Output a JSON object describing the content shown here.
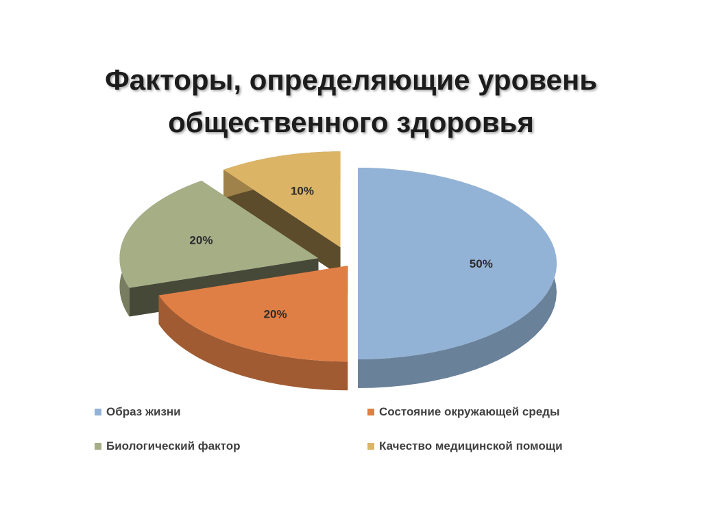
{
  "slide": {
    "title_line1": "Факторы, определяющие уровень",
    "title_line2": "общественного здоровья"
  },
  "chart_data": {
    "type": "pie",
    "style": "3d-exploded",
    "categories": [
      "Образ жизни",
      "Состояние окружающей среды",
      "Биологический фактор",
      "Качество медицинской помощи"
    ],
    "values": [
      50,
      20,
      20,
      10
    ],
    "data_labels": [
      "50%",
      "20%",
      "20%",
      "10%"
    ],
    "colors": [
      "#93b3d6",
      "#e07f45",
      "#a6ae86",
      "#dcb466"
    ],
    "legend_position": "bottom"
  }
}
